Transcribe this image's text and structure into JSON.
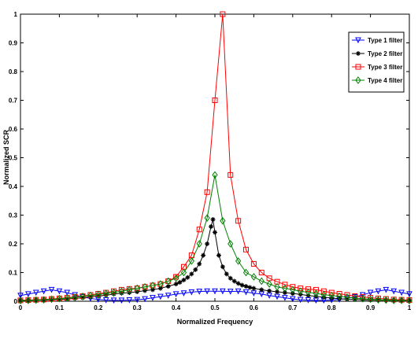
{
  "chart_data": {
    "type": "line",
    "xlabel": "Normalized Frequency",
    "ylabel": "Normalized SCR",
    "xlim": [
      0,
      1
    ],
    "ylim": [
      0,
      1
    ],
    "xticks": [
      "0",
      "0.1",
      "0.2",
      "0.3",
      "0.4",
      "0.5",
      "0.6",
      "0.7",
      "0.8",
      "0.9",
      "1"
    ],
    "yticks": [
      "0",
      "0.1",
      "0.2",
      "0.3",
      "0.4",
      "0.5",
      "0.6",
      "0.7",
      "0.8",
      "0.9",
      "1"
    ],
    "grid": false,
    "legend_position": "top-right",
    "series": [
      {
        "name": "Type 1 filter",
        "color": "#0000ff",
        "marker": "triangle-down",
        "x": [
          0,
          0.02,
          0.04,
          0.06,
          0.08,
          0.1,
          0.12,
          0.14,
          0.16,
          0.18,
          0.2,
          0.22,
          0.24,
          0.26,
          0.28,
          0.3,
          0.32,
          0.34,
          0.36,
          0.38,
          0.4,
          0.42,
          0.44,
          0.46,
          0.48,
          0.5,
          0.52,
          0.54,
          0.56,
          0.58,
          0.6,
          0.62,
          0.64,
          0.66,
          0.68,
          0.7,
          0.72,
          0.74,
          0.76,
          0.78,
          0.8,
          0.82,
          0.84,
          0.86,
          0.88,
          0.9,
          0.92,
          0.94,
          0.96,
          0.98,
          1
        ],
        "y": [
          0.02,
          0.025,
          0.03,
          0.035,
          0.04,
          0.035,
          0.03,
          0.022,
          0.015,
          0.01,
          0.006,
          0.004,
          0.003,
          0.003,
          0.004,
          0.005,
          0.008,
          0.012,
          0.016,
          0.02,
          0.025,
          0.028,
          0.032,
          0.034,
          0.035,
          0.035,
          0.035,
          0.034,
          0.035,
          0.032,
          0.028,
          0.025,
          0.02,
          0.016,
          0.012,
          0.008,
          0.005,
          0.004,
          0.003,
          0.003,
          0.004,
          0.006,
          0.01,
          0.015,
          0.022,
          0.03,
          0.035,
          0.04,
          0.035,
          0.03,
          0.025
        ]
      },
      {
        "name": "Type 2 filter",
        "color": "#000000",
        "marker": "star",
        "x": [
          0,
          0.02,
          0.04,
          0.06,
          0.08,
          0.1,
          0.12,
          0.14,
          0.16,
          0.18,
          0.2,
          0.22,
          0.24,
          0.26,
          0.28,
          0.3,
          0.32,
          0.34,
          0.36,
          0.38,
          0.4,
          0.41,
          0.42,
          0.43,
          0.44,
          0.45,
          0.46,
          0.47,
          0.48,
          0.49,
          0.495,
          0.5,
          0.51,
          0.52,
          0.53,
          0.54,
          0.55,
          0.56,
          0.57,
          0.58,
          0.59,
          0.6,
          0.62,
          0.64,
          0.66,
          0.68,
          0.7,
          0.72,
          0.74,
          0.76,
          0.78,
          0.8,
          0.82,
          0.84,
          0.86,
          0.88,
          0.9,
          0.92,
          0.94,
          0.96,
          0.98,
          1
        ],
        "y": [
          0.003,
          0.003,
          0.004,
          0.004,
          0.005,
          0.006,
          0.008,
          0.01,
          0.012,
          0.015,
          0.018,
          0.021,
          0.025,
          0.028,
          0.03,
          0.033,
          0.037,
          0.04,
          0.045,
          0.052,
          0.06,
          0.066,
          0.074,
          0.083,
          0.095,
          0.11,
          0.13,
          0.16,
          0.2,
          0.26,
          0.285,
          0.24,
          0.16,
          0.12,
          0.095,
          0.08,
          0.07,
          0.062,
          0.056,
          0.052,
          0.048,
          0.045,
          0.04,
          0.036,
          0.033,
          0.03,
          0.027,
          0.024,
          0.02,
          0.017,
          0.014,
          0.011,
          0.009,
          0.007,
          0.006,
          0.005,
          0.004,
          0.004,
          0.003,
          0.003,
          0.003,
          0.003
        ]
      },
      {
        "name": "Type 3 filter",
        "color": "#ff0000",
        "marker": "square",
        "x": [
          0,
          0.02,
          0.04,
          0.06,
          0.08,
          0.1,
          0.12,
          0.14,
          0.16,
          0.18,
          0.2,
          0.22,
          0.24,
          0.26,
          0.28,
          0.3,
          0.32,
          0.34,
          0.36,
          0.38,
          0.4,
          0.42,
          0.44,
          0.46,
          0.48,
          0.5,
          0.52,
          0.54,
          0.56,
          0.58,
          0.6,
          0.62,
          0.64,
          0.66,
          0.68,
          0.7,
          0.72,
          0.74,
          0.76,
          0.78,
          0.8,
          0.82,
          0.84,
          0.86,
          0.88,
          0.9,
          0.92,
          0.94,
          0.96,
          0.98,
          1
        ],
        "y": [
          0.003,
          0.004,
          0.005,
          0.006,
          0.008,
          0.01,
          0.012,
          0.015,
          0.018,
          0.022,
          0.026,
          0.03,
          0.035,
          0.04,
          0.043,
          0.045,
          0.05,
          0.055,
          0.06,
          0.07,
          0.085,
          0.12,
          0.16,
          0.25,
          0.38,
          0.7,
          1.0,
          0.44,
          0.28,
          0.18,
          0.13,
          0.1,
          0.08,
          0.068,
          0.058,
          0.05,
          0.045,
          0.042,
          0.04,
          0.035,
          0.03,
          0.026,
          0.022,
          0.018,
          0.015,
          0.012,
          0.01,
          0.008,
          0.006,
          0.005,
          0.004
        ],
        "note_x_shift": 0
      },
      {
        "name": "Type 4 filter",
        "color": "#008000",
        "marker": "diamond",
        "x": [
          0,
          0.02,
          0.04,
          0.06,
          0.08,
          0.1,
          0.12,
          0.14,
          0.16,
          0.18,
          0.2,
          0.22,
          0.24,
          0.26,
          0.28,
          0.3,
          0.32,
          0.34,
          0.36,
          0.38,
          0.4,
          0.42,
          0.44,
          0.46,
          0.48,
          0.5,
          0.52,
          0.54,
          0.56,
          0.58,
          0.6,
          0.62,
          0.64,
          0.66,
          0.68,
          0.7,
          0.72,
          0.74,
          0.76,
          0.78,
          0.8,
          0.82,
          0.84,
          0.86,
          0.88,
          0.9,
          0.92,
          0.94,
          0.96,
          0.98,
          1
        ],
        "y": [
          0.002,
          0.003,
          0.004,
          0.005,
          0.007,
          0.009,
          0.011,
          0.014,
          0.017,
          0.02,
          0.023,
          0.027,
          0.031,
          0.035,
          0.04,
          0.045,
          0.05,
          0.055,
          0.06,
          0.07,
          0.08,
          0.1,
          0.14,
          0.2,
          0.29,
          0.44,
          0.28,
          0.2,
          0.14,
          0.1,
          0.085,
          0.07,
          0.06,
          0.05,
          0.045,
          0.04,
          0.035,
          0.031,
          0.027,
          0.023,
          0.02,
          0.017,
          0.014,
          0.011,
          0.009,
          0.007,
          0.005,
          0.004,
          0.003,
          0.003,
          0.002
        ]
      }
    ]
  }
}
